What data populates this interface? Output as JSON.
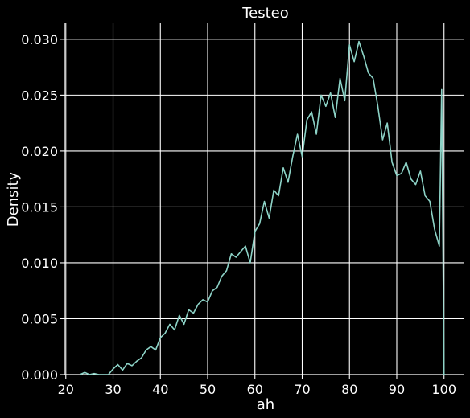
{
  "chart_data": {
    "type": "line",
    "title": "Testeo",
    "xlabel": "ah",
    "ylabel": "Density",
    "xlim": [
      19.7,
      104.3
    ],
    "ylim": [
      0,
      0.0315
    ],
    "xticks": [
      20,
      30,
      40,
      50,
      60,
      70,
      80,
      90,
      100
    ],
    "yticks": [
      0,
      0.005,
      0.01,
      0.015,
      0.02,
      0.025,
      0.03
    ],
    "xtick_labels": [
      "20",
      "30",
      "40",
      "50",
      "60",
      "70",
      "80",
      "90",
      "100"
    ],
    "ytick_labels": [
      "0.000",
      "0.005",
      "0.010",
      "0.015",
      "0.020",
      "0.025",
      "0.030"
    ],
    "grid": true,
    "series": [
      {
        "color": "#8dd3c7",
        "x": [
          23,
          24,
          25,
          26,
          27,
          28,
          29,
          30,
          31,
          32,
          33,
          34,
          35,
          36,
          37,
          38,
          39,
          40,
          41,
          42,
          43,
          44,
          45,
          46,
          47,
          48,
          49,
          50,
          51,
          52,
          53,
          54,
          55,
          56,
          57,
          58,
          59,
          60,
          61,
          62,
          63,
          64,
          65,
          66,
          67,
          68,
          69,
          70,
          71,
          72,
          73,
          74,
          75,
          76,
          77,
          78,
          79,
          80,
          81,
          82,
          83,
          84,
          85,
          86,
          87,
          88,
          89,
          90,
          91,
          92,
          93,
          94,
          95,
          96,
          97,
          98,
          99,
          99.5,
          100,
          100.3
        ],
        "y": [
          0.0,
          0.0002,
          0.0,
          0.0001,
          0.0,
          0.0,
          0.0,
          0.0005,
          0.0009,
          0.0004,
          0.001,
          0.0008,
          0.0012,
          0.0015,
          0.0022,
          0.0025,
          0.0022,
          0.0033,
          0.0037,
          0.0045,
          0.004,
          0.0053,
          0.0045,
          0.0058,
          0.0055,
          0.0063,
          0.0067,
          0.0065,
          0.0075,
          0.0078,
          0.0088,
          0.0093,
          0.0108,
          0.0105,
          0.011,
          0.0115,
          0.01,
          0.0128,
          0.0135,
          0.0155,
          0.014,
          0.0165,
          0.016,
          0.0185,
          0.0172,
          0.0195,
          0.0215,
          0.0195,
          0.0228,
          0.0235,
          0.0215,
          0.025,
          0.024,
          0.0252,
          0.023,
          0.0265,
          0.0245,
          0.0295,
          0.028,
          0.0298,
          0.0285,
          0.027,
          0.0265,
          0.024,
          0.021,
          0.0225,
          0.019,
          0.0178,
          0.018,
          0.019,
          0.0175,
          0.017,
          0.0182,
          0.016,
          0.0155,
          0.013,
          0.0115,
          0.0255,
          0.0,
          0.0
        ]
      }
    ]
  }
}
